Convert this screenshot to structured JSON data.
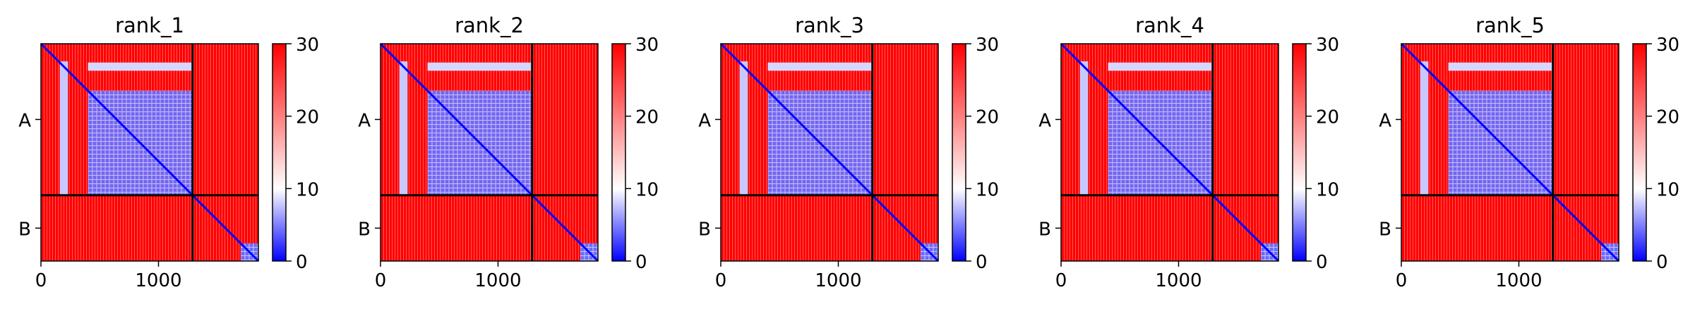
{
  "chart_data": {
    "type": "heatmap",
    "title": "",
    "colormap": {
      "name": "bwr",
      "low_color": "#0000ff",
      "mid_color": "#ffffff",
      "high_color": "#ff0000",
      "vmin": 0,
      "vmax": 30,
      "ticks": [
        "0",
        "10",
        "20",
        "30"
      ]
    },
    "x_axis": {
      "range": [
        0,
        1850
      ],
      "tick_values": [
        0,
        1000
      ],
      "tick_labels": [
        "0",
        "1000"
      ]
    },
    "y_axis": {
      "chain_labels": [
        "A",
        "B"
      ]
    },
    "chains": [
      {
        "name": "A",
        "start": 0,
        "end": 1290
      },
      {
        "name": "B",
        "start": 1290,
        "end": 1850
      }
    ],
    "panels": [
      {
        "title": "rank_1"
      },
      {
        "title": "rank_2"
      },
      {
        "title": "rank_3"
      },
      {
        "title": "rank_4"
      },
      {
        "title": "rank_5"
      }
    ]
  }
}
